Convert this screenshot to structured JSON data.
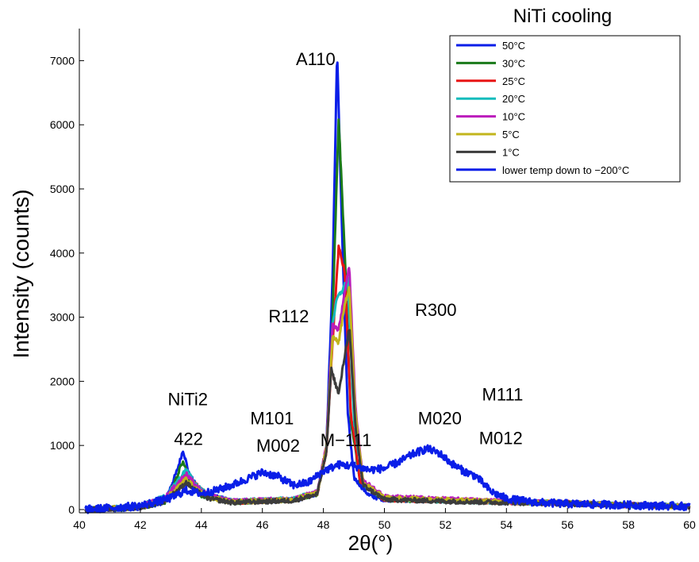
{
  "chart_data": {
    "type": "line",
    "title": "NiTi cooling",
    "xlabel": "2θ(°)",
    "ylabel": "Intensity (counts)",
    "xlim": [
      40,
      60
    ],
    "ylim": [
      -50,
      7500
    ],
    "xticks": [
      "40",
      "42",
      "44",
      "46",
      "48",
      "50",
      "52",
      "54",
      "56",
      "58",
      "60"
    ],
    "yticks": [
      "0",
      "1000",
      "2000",
      "3000",
      "4000",
      "5000",
      "6000",
      "7000"
    ],
    "legend_position": "top-right",
    "series": [
      {
        "name": "50°C",
        "color": "#0a1ee8",
        "x": [
          40.2,
          41,
          42,
          42.8,
          43.2,
          43.4,
          43.6,
          44,
          45,
          47,
          47.8,
          48.1,
          48.3,
          48.45,
          48.6,
          48.8,
          49,
          49.5,
          50,
          52,
          54,
          56,
          58,
          60
        ],
        "y": [
          0,
          0,
          30,
          120,
          600,
          930,
          550,
          250,
          130,
          150,
          250,
          1000,
          3600,
          7150,
          4500,
          1500,
          500,
          220,
          160,
          140,
          120,
          100,
          70,
          50
        ]
      },
      {
        "name": "30°C",
        "color": "#1a7a1a",
        "x": [
          40.2,
          42,
          42.8,
          43.2,
          43.4,
          43.6,
          44,
          45,
          47,
          47.8,
          48.1,
          48.3,
          48.5,
          48.7,
          48.9,
          49.2,
          50,
          52,
          54,
          56,
          58,
          60
        ],
        "y": [
          0,
          30,
          120,
          500,
          780,
          450,
          220,
          120,
          150,
          250,
          900,
          3000,
          6100,
          4000,
          1400,
          450,
          160,
          140,
          120,
          100,
          70,
          50
        ]
      },
      {
        "name": "25°C",
        "color": "#e81414",
        "x": [
          40.2,
          42,
          42.8,
          43.3,
          43.5,
          43.8,
          44.2,
          45,
          47,
          47.8,
          48.1,
          48.3,
          48.5,
          48.7,
          48.9,
          49.2,
          50,
          52,
          54,
          56,
          58,
          60
        ],
        "y": [
          0,
          40,
          150,
          420,
          600,
          400,
          220,
          120,
          150,
          260,
          900,
          2600,
          4100,
          3700,
          1500,
          450,
          160,
          140,
          120,
          100,
          70,
          50
        ]
      },
      {
        "name": "20°C",
        "color": "#14bcbc",
        "x": [
          40.2,
          42,
          42.8,
          43.3,
          43.5,
          43.8,
          44.2,
          45,
          47,
          47.8,
          48.1,
          48.3,
          48.45,
          48.6,
          48.8,
          49,
          49.3,
          50,
          52,
          54,
          56,
          58,
          60
        ],
        "y": [
          0,
          50,
          200,
          480,
          620,
          400,
          230,
          130,
          160,
          280,
          1000,
          2900,
          3300,
          3400,
          3600,
          1400,
          400,
          170,
          140,
          120,
          100,
          70,
          50
        ]
      },
      {
        "name": "10°C",
        "color": "#bb1cbb",
        "x": [
          40.2,
          42,
          42.8,
          43.3,
          43.5,
          43.8,
          44.2,
          45,
          47,
          47.8,
          48.1,
          48.3,
          48.5,
          48.7,
          48.85,
          49.05,
          49.3,
          50,
          52,
          54,
          56,
          58,
          60
        ],
        "y": [
          0,
          50,
          180,
          450,
          560,
          380,
          220,
          130,
          160,
          280,
          1000,
          2900,
          2800,
          3400,
          3800,
          1600,
          450,
          200,
          160,
          130,
          100,
          70,
          50
        ]
      },
      {
        "name": "5°C",
        "color": "#c2b51c",
        "x": [
          40.2,
          42,
          42.8,
          43.3,
          43.5,
          43.8,
          44.2,
          45,
          47,
          47.8,
          48.1,
          48.3,
          48.5,
          48.7,
          48.85,
          49.05,
          49.3,
          50,
          52,
          54,
          56,
          58,
          60
        ],
        "y": [
          0,
          40,
          150,
          380,
          480,
          330,
          200,
          120,
          150,
          260,
          950,
          2700,
          2600,
          3200,
          3450,
          1500,
          420,
          180,
          150,
          120,
          100,
          70,
          50
        ]
      },
      {
        "name": "1°C",
        "color": "#3c3c3c",
        "x": [
          40.2,
          42,
          42.8,
          43.3,
          43.5,
          43.8,
          44.2,
          45,
          47,
          47.8,
          48.1,
          48.25,
          48.5,
          48.7,
          48.85,
          49.05,
          49.3,
          50,
          52,
          54,
          56,
          58,
          60
        ],
        "y": [
          0,
          30,
          130,
          330,
          420,
          300,
          180,
          110,
          140,
          240,
          900,
          2200,
          1800,
          2400,
          2850,
          1300,
          380,
          160,
          130,
          110,
          90,
          70,
          50
        ]
      },
      {
        "name": "lower temp down to −200°C",
        "color": "#0a1ee8",
        "x": [
          40.2,
          42,
          43,
          43.5,
          44,
          44.5,
          45,
          45.5,
          46,
          46.5,
          47,
          47.5,
          48,
          48.5,
          49,
          49.5,
          50,
          50.5,
          51,
          51.4,
          51.8,
          52.2,
          52.6,
          53,
          53.5,
          54,
          55,
          56,
          58,
          60
        ],
        "y": [
          0,
          60,
          180,
          300,
          250,
          300,
          380,
          480,
          580,
          520,
          380,
          420,
          600,
          700,
          680,
          620,
          640,
          750,
          880,
          950,
          880,
          720,
          600,
          520,
          280,
          170,
          110,
          90,
          70,
          50
        ]
      }
    ],
    "annotations": [
      {
        "text": "A110",
        "x": 47.1,
        "y": 6930
      },
      {
        "text": "R112",
        "x": 46.2,
        "y": 2920
      },
      {
        "text": "R300",
        "x": 51.0,
        "y": 3020
      },
      {
        "text": "NiTi2",
        "x": 42.9,
        "y": 1630
      },
      {
        "text": "422",
        "x": 43.1,
        "y": 1010
      },
      {
        "text": "M101",
        "x": 45.6,
        "y": 1330
      },
      {
        "text": "M002",
        "x": 45.8,
        "y": 900
      },
      {
        "text": "M−111",
        "x": 47.9,
        "y": 990
      },
      {
        "text": "M020",
        "x": 51.1,
        "y": 1330
      },
      {
        "text": "M111",
        "x": 53.2,
        "y": 1700
      },
      {
        "text": "M012",
        "x": 53.1,
        "y": 1020
      }
    ]
  }
}
